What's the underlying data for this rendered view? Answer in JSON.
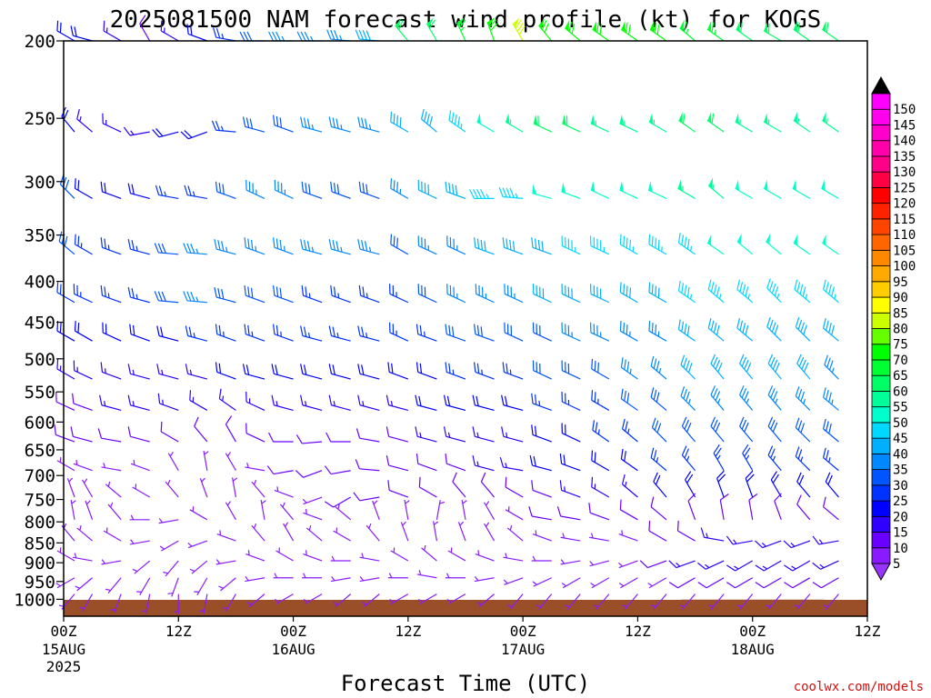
{
  "chart_data": {
    "type": "wind-barb-time-height",
    "title": "2025081500 NAM forecast wind profile (kt) for KOGS",
    "xlabel": "Forecast Time (UTC)",
    "ylabel": "",
    "credit": "coolwx.com/models",
    "x_range_hours": [
      0,
      84
    ],
    "x_ticks": [
      {
        "hour": 0,
        "label": "00Z",
        "sub1": "15AUG",
        "sub2": "2025"
      },
      {
        "hour": 12,
        "label": "12Z",
        "sub1": "",
        "sub2": ""
      },
      {
        "hour": 24,
        "label": "00Z",
        "sub1": "16AUG",
        "sub2": ""
      },
      {
        "hour": 36,
        "label": "12Z",
        "sub1": "",
        "sub2": ""
      },
      {
        "hour": 48,
        "label": "00Z",
        "sub1": "17AUG",
        "sub2": ""
      },
      {
        "hour": 60,
        "label": "12Z",
        "sub1": "",
        "sub2": ""
      },
      {
        "hour": 72,
        "label": "00Z",
        "sub1": "18AUG",
        "sub2": ""
      },
      {
        "hour": 84,
        "label": "12Z",
        "sub1": "",
        "sub2": ""
      }
    ],
    "y_range_hPa": [
      200,
      1050
    ],
    "y_ticks": [
      200,
      250,
      300,
      350,
      400,
      450,
      500,
      550,
      600,
      650,
      700,
      750,
      800,
      850,
      900,
      950,
      1000
    ],
    "time_step_hours": 3,
    "ground_color": "#9b4f28",
    "ground_surface_hPa": [
      1003,
      1003,
      1004,
      1004,
      1004,
      1004,
      1004,
      1004,
      1002,
      1002,
      1002,
      1002,
      1002,
      1002,
      1002,
      1002,
      1002,
      1002,
      1002,
      1002,
      1002,
      1002,
      1001,
      1001,
      1001,
      1001,
      1001,
      1003,
      1003
    ],
    "colorbar": {
      "levels": [
        5,
        10,
        15,
        20,
        25,
        30,
        35,
        40,
        45,
        50,
        55,
        60,
        65,
        70,
        75,
        80,
        85,
        90,
        95,
        100,
        105,
        110,
        115,
        120,
        125,
        130,
        135,
        140,
        145,
        150
      ],
      "colors": [
        "#8a1aff",
        "#6a00ff",
        "#2f00ff",
        "#0000ff",
        "#0033ff",
        "#0055ff",
        "#0088ff",
        "#00b0ff",
        "#00d8ff",
        "#00ffcc",
        "#00ff99",
        "#00ff66",
        "#00ff33",
        "#00ff00",
        "#66ff00",
        "#ccff00",
        "#ffff00",
        "#ffcc00",
        "#ffaa00",
        "#ff8800",
        "#ff6600",
        "#ff4400",
        "#ff2200",
        "#ff0000",
        "#ff0044",
        "#ff0088",
        "#ff00aa",
        "#ff00cc",
        "#ff00ee",
        "#ff00ff"
      ],
      "under_color": "#9933ff",
      "over_color": "#000000"
    },
    "series": [
      {
        "pressure": 200,
        "dir": [
          300,
          285,
          300,
          330,
          300,
          290,
          280,
          270,
          270,
          270,
          275,
          275,
          320,
          330,
          335,
          340,
          330,
          320,
          310,
          305,
          305,
          305,
          310,
          305,
          305,
          300,
          305,
          305,
          300
        ],
        "speed": [
          20,
          20,
          15,
          10,
          15,
          20,
          25,
          30,
          35,
          35,
          35,
          40,
          60,
          60,
          65,
          70,
          80,
          70,
          70,
          70,
          70,
          70,
          65,
          65,
          60,
          60,
          60,
          60,
          60
        ]
      },
      {
        "pressure": 260,
        "dir": [
          320,
          310,
          295,
          260,
          255,
          250,
          275,
          285,
          290,
          285,
          285,
          285,
          300,
          310,
          305,
          300,
          300,
          295,
          295,
          295,
          295,
          300,
          305,
          305,
          300,
          300,
          305,
          305,
          300
        ],
        "speed": [
          20,
          15,
          15,
          15,
          20,
          20,
          25,
          30,
          30,
          35,
          35,
          35,
          40,
          40,
          45,
          50,
          55,
          60,
          60,
          55,
          55,
          55,
          60,
          60,
          55,
          55,
          55,
          55,
          55
        ]
      },
      {
        "pressure": 315,
        "dir": [
          315,
          300,
          290,
          285,
          280,
          280,
          290,
          295,
          295,
          290,
          290,
          290,
          300,
          295,
          290,
          270,
          275,
          285,
          290,
          295,
          295,
          295,
          300,
          310,
          300,
          300,
          300,
          300,
          300
        ],
        "speed": [
          30,
          20,
          20,
          20,
          25,
          25,
          30,
          35,
          35,
          30,
          30,
          30,
          35,
          40,
          40,
          45,
          45,
          50,
          50,
          50,
          50,
          50,
          55,
          55,
          50,
          50,
          50,
          50,
          50
        ]
      },
      {
        "pressure": 370,
        "dir": [
          310,
          300,
          290,
          285,
          275,
          275,
          285,
          290,
          290,
          285,
          285,
          285,
          300,
          295,
          295,
          290,
          290,
          290,
          295,
          295,
          300,
          300,
          305,
          305,
          310,
          310,
          305,
          305,
          305
        ],
        "speed": [
          30,
          25,
          25,
          25,
          30,
          35,
          35,
          35,
          35,
          35,
          35,
          35,
          30,
          35,
          35,
          40,
          40,
          40,
          45,
          45,
          45,
          45,
          45,
          50,
          50,
          50,
          50,
          50,
          45
        ]
      },
      {
        "pressure": 425,
        "dir": [
          300,
          295,
          290,
          285,
          275,
          275,
          285,
          290,
          290,
          290,
          290,
          290,
          295,
          295,
          295,
          295,
          295,
          295,
          295,
          295,
          300,
          300,
          305,
          310,
          310,
          315,
          310,
          310,
          305
        ],
        "speed": [
          25,
          25,
          25,
          25,
          30,
          35,
          30,
          30,
          30,
          25,
          25,
          25,
          25,
          30,
          35,
          35,
          35,
          40,
          40,
          40,
          40,
          40,
          45,
          45,
          45,
          45,
          45,
          45,
          40
        ]
      },
      {
        "pressure": 475,
        "dir": [
          300,
          300,
          295,
          290,
          285,
          285,
          290,
          290,
          290,
          285,
          285,
          285,
          295,
          290,
          290,
          290,
          295,
          295,
          295,
          295,
          300,
          300,
          305,
          310,
          310,
          315,
          315,
          310,
          305
        ],
        "speed": [
          20,
          20,
          20,
          20,
          20,
          25,
          25,
          25,
          25,
          25,
          25,
          25,
          25,
          25,
          30,
          30,
          30,
          30,
          35,
          35,
          35,
          35,
          40,
          40,
          40,
          40,
          40,
          40,
          40
        ]
      },
      {
        "pressure": 530,
        "dir": [
          300,
          295,
          290,
          285,
          285,
          285,
          290,
          285,
          285,
          285,
          285,
          285,
          290,
          290,
          290,
          290,
          290,
          295,
          295,
          300,
          305,
          310,
          315,
          320,
          320,
          320,
          320,
          315,
          310
        ],
        "speed": [
          15,
          15,
          15,
          15,
          15,
          15,
          20,
          20,
          20,
          20,
          20,
          20,
          20,
          20,
          25,
          25,
          25,
          30,
          30,
          30,
          35,
          35,
          40,
          40,
          40,
          40,
          40,
          35,
          35
        ]
      },
      {
        "pressure": 580,
        "dir": [
          295,
          290,
          285,
          285,
          290,
          300,
          305,
          295,
          285,
          285,
          285,
          285,
          285,
          285,
          285,
          285,
          285,
          290,
          295,
          300,
          305,
          310,
          315,
          320,
          320,
          320,
          315,
          310,
          310
        ],
        "speed": [
          10,
          10,
          15,
          15,
          15,
          15,
          15,
          15,
          15,
          15,
          15,
          15,
          15,
          20,
          20,
          20,
          20,
          25,
          25,
          25,
          30,
          30,
          35,
          35,
          35,
          35,
          35,
          35,
          35
        ]
      },
      {
        "pressure": 635,
        "dir": [
          290,
          285,
          280,
          285,
          300,
          320,
          330,
          295,
          270,
          265,
          270,
          280,
          285,
          285,
          285,
          285,
          285,
          290,
          295,
          305,
          310,
          315,
          320,
          320,
          320,
          320,
          315,
          310,
          310
        ],
        "speed": [
          10,
          10,
          10,
          10,
          10,
          10,
          10,
          10,
          10,
          10,
          10,
          10,
          10,
          15,
          15,
          15,
          15,
          20,
          20,
          25,
          25,
          30,
          30,
          30,
          30,
          30,
          30,
          30,
          30
        ]
      },
      {
        "pressure": 690,
        "dir": [
          300,
          290,
          280,
          290,
          330,
          350,
          330,
          280,
          260,
          250,
          260,
          275,
          285,
          290,
          290,
          285,
          280,
          285,
          290,
          300,
          305,
          310,
          320,
          330,
          330,
          320,
          315,
          310,
          310
        ],
        "speed": [
          5,
          5,
          5,
          5,
          5,
          5,
          5,
          5,
          10,
          10,
          10,
          10,
          10,
          10,
          10,
          15,
          15,
          20,
          20,
          20,
          20,
          25,
          25,
          25,
          25,
          25,
          25,
          25,
          25
        ]
      },
      {
        "pressure": 745,
        "dir": [
          340,
          330,
          310,
          300,
          320,
          340,
          350,
          320,
          290,
          250,
          240,
          260,
          290,
          300,
          320,
          320,
          300,
          290,
          290,
          300,
          310,
          320,
          330,
          340,
          340,
          330,
          320,
          320,
          320
        ],
        "speed": [
          5,
          5,
          5,
          5,
          5,
          5,
          5,
          5,
          5,
          5,
          10,
          10,
          10,
          10,
          10,
          10,
          10,
          10,
          15,
          15,
          15,
          20,
          20,
          20,
          20,
          20,
          20,
          20,
          20
        ]
      },
      {
        "pressure": 795,
        "dir": [
          350,
          340,
          320,
          270,
          260,
          300,
          330,
          350,
          320,
          290,
          310,
          340,
          350,
          10,
          350,
          330,
          300,
          280,
          280,
          290,
          300,
          310,
          340,
          350,
          350,
          340,
          320,
          310,
          300
        ],
        "speed": [
          5,
          5,
          5,
          5,
          5,
          5,
          5,
          5,
          5,
          5,
          5,
          5,
          5,
          5,
          5,
          5,
          5,
          10,
          10,
          10,
          10,
          10,
          10,
          10,
          10,
          10,
          10,
          10,
          10
        ]
      },
      {
        "pressure": 845,
        "dir": [
          320,
          310,
          300,
          260,
          240,
          250,
          290,
          320,
          330,
          310,
          300,
          320,
          340,
          350,
          340,
          330,
          310,
          290,
          280,
          280,
          290,
          300,
          300,
          280,
          260,
          250,
          250,
          260,
          270
        ],
        "speed": [
          5,
          5,
          5,
          5,
          5,
          5,
          5,
          5,
          5,
          5,
          5,
          5,
          5,
          5,
          5,
          5,
          5,
          5,
          5,
          5,
          5,
          10,
          10,
          15,
          15,
          15,
          15,
          15,
          15
        ]
      },
      {
        "pressure": 895,
        "dir": [
          300,
          280,
          260,
          230,
          220,
          230,
          260,
          290,
          300,
          290,
          270,
          280,
          300,
          310,
          300,
          290,
          280,
          270,
          260,
          255,
          250,
          250,
          250,
          245,
          240,
          240,
          240,
          245,
          250
        ],
        "speed": [
          5,
          5,
          5,
          5,
          5,
          5,
          5,
          5,
          5,
          5,
          5,
          5,
          5,
          5,
          5,
          5,
          5,
          5,
          5,
          5,
          5,
          10,
          15,
          15,
          15,
          15,
          15,
          15,
          15
        ]
      },
      {
        "pressure": 940,
        "dir": [
          240,
          230,
          220,
          210,
          200,
          210,
          230,
          260,
          270,
          270,
          260,
          260,
          270,
          280,
          270,
          260,
          250,
          245,
          240,
          240,
          240,
          240,
          240,
          240,
          240,
          240,
          240,
          240,
          240
        ],
        "speed": [
          5,
          5,
          5,
          5,
          5,
          5,
          5,
          5,
          5,
          5,
          5,
          5,
          5,
          5,
          5,
          5,
          5,
          5,
          5,
          5,
          5,
          5,
          10,
          10,
          10,
          10,
          10,
          10,
          10
        ]
      },
      {
        "pressure": 985,
        "dir": [
          220,
          210,
          200,
          190,
          180,
          190,
          210,
          230,
          240,
          240,
          230,
          230,
          240,
          240,
          240,
          230,
          220,
          220,
          220,
          220,
          220,
          220,
          220,
          220,
          220,
          220,
          220,
          220,
          220
        ],
        "speed": [
          5,
          5,
          5,
          5,
          5,
          5,
          5,
          5,
          5,
          5,
          5,
          5,
          5,
          5,
          5,
          5,
          5,
          5,
          5,
          5,
          5,
          5,
          5,
          5,
          5,
          5,
          5,
          5,
          5
        ]
      }
    ]
  }
}
